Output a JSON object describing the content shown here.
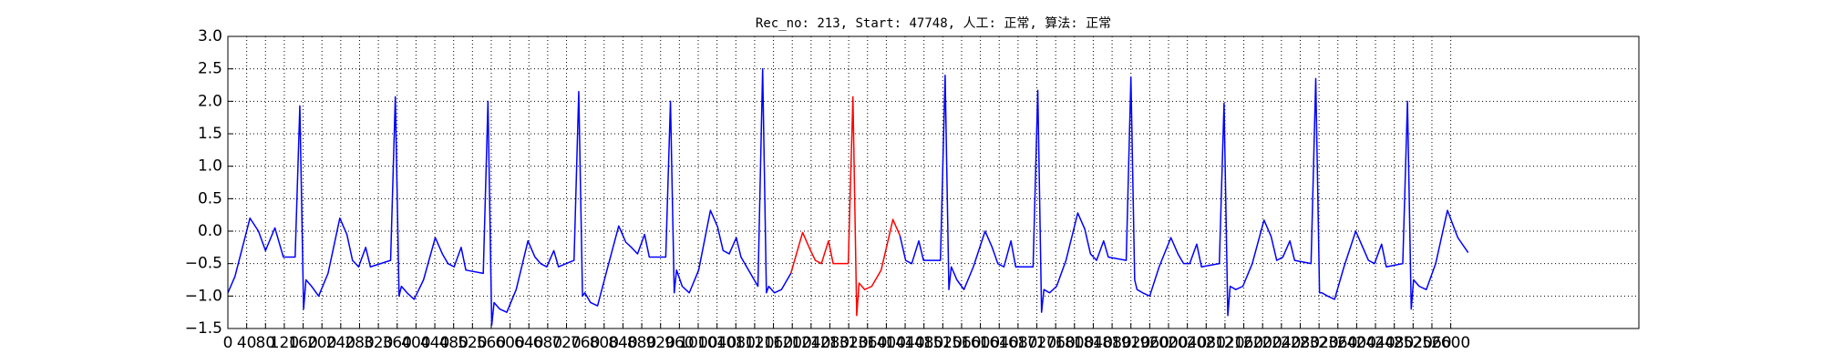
{
  "chart_data": {
    "type": "line",
    "title": "Rec_no: 213, Start: 47748, 人工: 正常, 算法: 正常",
    "x": [
      0,
      15,
      47,
      65,
      80,
      100,
      118,
      143,
      153,
      161,
      166,
      178,
      193,
      213,
      238,
      253,
      265,
      278,
      293,
      303,
      346,
      356,
      364,
      369,
      381,
      396,
      416,
      441,
      456,
      468,
      481,
      496,
      506,
      543,
      553,
      561,
      566,
      578,
      593,
      613,
      638,
      653,
      665,
      678,
      693,
      703,
      736,
      746,
      754,
      759,
      771,
      786,
      806,
      831,
      846,
      858,
      871,
      886,
      896,
      931,
      941,
      949,
      954,
      966,
      981,
      1001,
      1026,
      1041,
      1053,
      1066,
      1081,
      1091,
      1127,
      1137,
      1145,
      1150,
      1162,
      1177,
      1197,
      1222,
      1237,
      1249,
      1262,
      1277,
      1287,
      1319,
      1329,
      1337,
      1342,
      1354,
      1369,
      1389,
      1414,
      1429,
      1441,
      1454,
      1469,
      1479,
      1515,
      1525,
      1533,
      1538,
      1550,
      1565,
      1585,
      1610,
      1625,
      1637,
      1650,
      1665,
      1675,
      1712,
      1722,
      1730,
      1735,
      1747,
      1762,
      1782,
      1807,
      1822,
      1834,
      1847,
      1862,
      1872,
      1910,
      1920,
      1928,
      1933,
      1945,
      1960,
      1980,
      2005,
      2020,
      2032,
      2045,
      2060,
      2070,
      2108,
      2118,
      2126,
      2131,
      2143,
      2158,
      2178,
      2203,
      2218,
      2230,
      2243,
      2258,
      2268,
      2303,
      2313,
      2321,
      2326,
      2338,
      2353,
      2373,
      2398,
      2413,
      2425,
      2438,
      2453,
      2463,
      2498,
      2508,
      2516,
      2521,
      2533,
      2548,
      2568,
      2593,
      2615,
      2637
    ],
    "series": [
      {
        "color": "#0000ff",
        "values": [
          -0.95,
          -0.7,
          0.2,
          0.0,
          -0.3,
          0.05,
          -0.4,
          -0.4,
          1.93,
          -1.2,
          -0.75,
          -0.85,
          -1.0,
          -0.65,
          0.2,
          -0.05,
          -0.45,
          -0.55,
          -0.25,
          -0.55,
          -0.45,
          2.07,
          -1.0,
          -0.85,
          -0.95,
          -1.05,
          -0.75,
          -0.1,
          -0.35,
          -0.5,
          -0.55,
          -0.25,
          -0.6,
          -0.65,
          2.0,
          -1.45,
          -1.1,
          -1.2,
          -1.25,
          -0.9,
          -0.15,
          -0.4,
          -0.5,
          -0.55,
          -0.3,
          -0.55,
          -0.45,
          2.15,
          -1.0,
          -0.95,
          -1.1,
          -1.15,
          -0.6,
          0.08,
          -0.17,
          -0.25,
          -0.35,
          -0.05,
          -0.4,
          -0.4,
          2.0,
          -0.95,
          -0.6,
          -0.85,
          -0.95,
          -0.6,
          0.32,
          0.07,
          -0.3,
          -0.35,
          -0.1,
          -0.4,
          -0.85,
          2.5,
          -0.95,
          -0.85,
          -0.95,
          -0.9,
          -0.65,
          null,
          null,
          null,
          null,
          null,
          null,
          null,
          null,
          null,
          null,
          null,
          null,
          null,
          null,
          -0.07,
          -0.45,
          -0.5,
          -0.15,
          -0.45,
          -0.45,
          2.4,
          -0.9,
          -0.55,
          -0.75,
          -0.9,
          -0.55,
          0.0,
          -0.25,
          -0.5,
          -0.55,
          -0.15,
          -0.55,
          -0.55,
          2.17,
          -1.25,
          -0.9,
          -0.95,
          -0.85,
          -0.45,
          0.28,
          0.03,
          -0.35,
          -0.45,
          -0.15,
          -0.4,
          -0.45,
          2.37,
          -0.75,
          -0.9,
          -0.95,
          -1.0,
          -0.55,
          -0.1,
          -0.35,
          -0.5,
          -0.5,
          -0.2,
          -0.55,
          -0.5,
          1.97,
          -1.3,
          -0.85,
          -0.9,
          -0.85,
          -0.5,
          0.17,
          -0.08,
          -0.45,
          -0.4,
          -0.15,
          -0.45,
          -0.5,
          2.35,
          -0.95,
          -0.95,
          -1.0,
          -1.05,
          -0.55,
          0.0,
          -0.25,
          -0.45,
          -0.5,
          -0.2,
          -0.55,
          -0.5,
          2.0,
          -1.2,
          -0.75,
          -0.85,
          -0.9,
          -0.5,
          0.32,
          -0.1,
          -0.33
        ]
      },
      {
        "color": "#ff0000",
        "values": [
          null,
          null,
          null,
          null,
          null,
          null,
          null,
          null,
          null,
          null,
          null,
          null,
          null,
          null,
          null,
          null,
          null,
          null,
          null,
          null,
          null,
          null,
          null,
          null,
          null,
          null,
          null,
          null,
          null,
          null,
          null,
          null,
          null,
          null,
          null,
          null,
          null,
          null,
          null,
          null,
          null,
          null,
          null,
          null,
          null,
          null,
          null,
          null,
          null,
          null,
          null,
          null,
          null,
          null,
          null,
          null,
          null,
          null,
          null,
          null,
          null,
          null,
          null,
          null,
          null,
          null,
          null,
          null,
          null,
          null,
          null,
          null,
          null,
          null,
          null,
          null,
          null,
          null,
          -0.65,
          -0.02,
          -0.27,
          -0.45,
          -0.5,
          -0.15,
          -0.5,
          -0.5,
          2.07,
          -1.3,
          -0.8,
          -0.9,
          -0.85,
          -0.6,
          0.18,
          -0.07,
          null,
          null,
          null,
          null,
          null,
          null,
          null,
          null,
          null,
          null,
          null,
          null,
          null,
          null,
          null,
          null,
          null,
          null,
          null,
          null,
          null,
          null,
          null,
          null,
          null,
          null,
          null,
          null,
          null,
          null,
          null,
          null,
          null,
          null,
          null,
          null,
          null,
          null,
          null,
          null,
          null,
          null,
          null,
          null,
          null,
          null,
          null,
          null,
          null,
          null,
          null,
          null,
          null,
          null,
          null,
          null,
          null,
          null,
          null,
          null,
          null,
          null,
          null,
          null,
          null,
          null,
          null,
          null,
          null,
          null,
          null,
          null,
          null,
          null,
          null,
          null,
          null,
          null,
          null
        ]
      }
    ],
    "xlim": [
      0,
      3000
    ],
    "xticks": [
      0,
      40,
      80,
      120,
      160,
      200,
      240,
      280,
      320,
      360,
      400,
      440,
      480,
      520,
      560,
      600,
      640,
      680,
      720,
      760,
      800,
      840,
      880,
      920,
      960,
      1000,
      1040,
      1080,
      1120,
      1160,
      1200,
      1240,
      1280,
      1320,
      1360,
      1400,
      1440,
      1480,
      1520,
      1560,
      1600,
      1640,
      1680,
      1720,
      1760,
      1800,
      1840,
      1880,
      1920,
      1960,
      2000,
      2040,
      2080,
      2120,
      2160,
      2200,
      2240,
      2280,
      2320,
      2360,
      2400,
      2440,
      2480,
      2520,
      2560,
      2600
    ],
    "ylim": [
      -1.5,
      3.0
    ],
    "yticks": [
      {
        "value": -1.5,
        "label": "−1.5"
      },
      {
        "value": -1.0,
        "label": "−1.0"
      },
      {
        "value": -0.5,
        "label": "−0.5"
      },
      {
        "value": 0,
        "label": "0.0"
      },
      0.5,
      {
        "value": 1,
        "label": "1.0"
      },
      1.5,
      {
        "value": 2,
        "label": "2.0"
      },
      2.5,
      {
        "value": 3,
        "label": "3.0"
      }
    ],
    "grid": true
  }
}
